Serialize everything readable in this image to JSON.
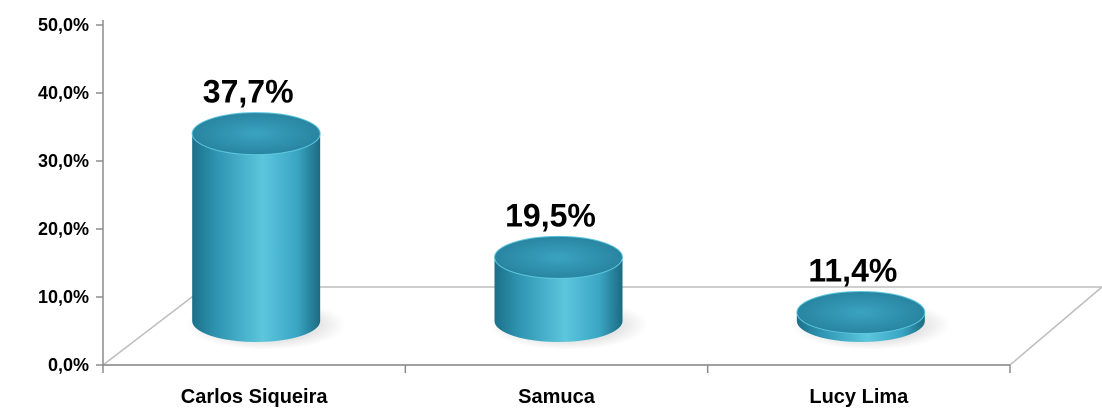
{
  "chart_data": {
    "type": "bar",
    "categories": [
      "Carlos Siqueira",
      "Samuca",
      "Lucy Lima"
    ],
    "values": [
      37.7,
      19.5,
      11.4
    ],
    "data_labels": [
      "37,7%",
      "19,5%",
      "11,4%"
    ],
    "ylim": [
      0,
      50
    ],
    "yticks": [
      0,
      10,
      20,
      30,
      40,
      50
    ],
    "ytick_labels": [
      "0,0%",
      "10,0%",
      "20,0%",
      "30,0%",
      "40,0%",
      "50,0%"
    ],
    "title": "",
    "xlabel": "",
    "ylabel": "",
    "grid": false,
    "legend": "none",
    "bar_color": "#3aa6c4",
    "bar_top_color": "#2e8aa5"
  }
}
